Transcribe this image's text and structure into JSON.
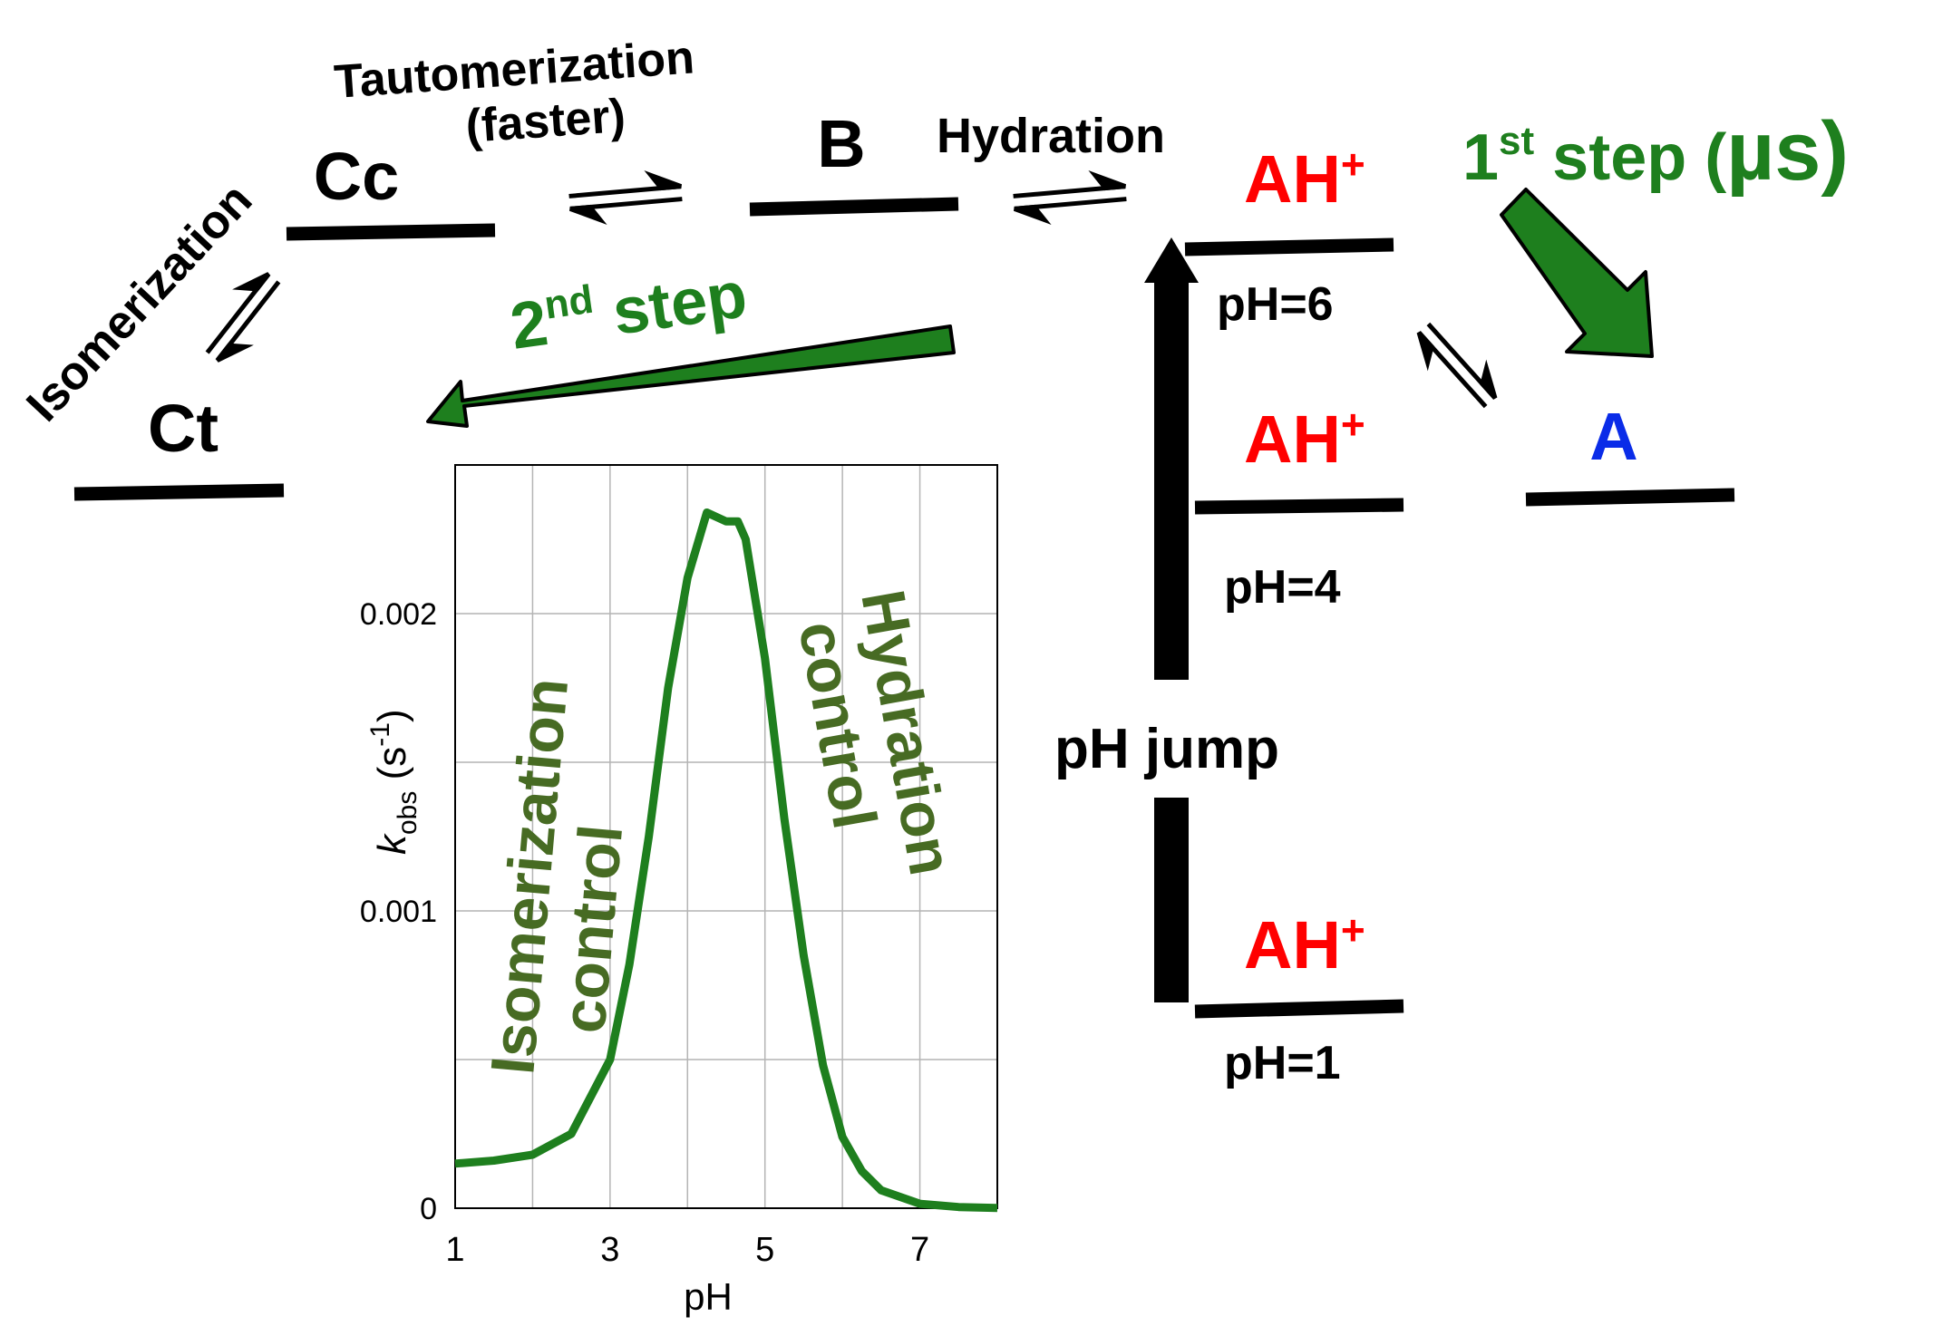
{
  "colors": {
    "green": "#1e7f1e",
    "olive": "#476b23",
    "red": "#ff0000",
    "blue": "#0a2ce8",
    "black": "#000000",
    "grid": "#b4b4b4"
  },
  "states": {
    "ct": "Ct",
    "cc": "Cc",
    "b": "B",
    "a": "A",
    "ah_plus": "AH",
    "ah_plus_sup": "+"
  },
  "processes": {
    "isomerization": "Isomerization",
    "tautomerization_line1": "Tautomerization",
    "tautomerization_line2": "(faster)",
    "hydration": "Hydration"
  },
  "steps": {
    "first_num": "1",
    "first_sup": "st",
    "first_text": " step (",
    "first_unit": "µs",
    "first_close": ")",
    "second_num": "2",
    "second_sup": "nd",
    "second_text": " step"
  },
  "ph_levels": {
    "ph6": "pH=6",
    "ph4": "pH=4",
    "ph1": "pH=1",
    "jump": "pH jump"
  },
  "chart_data": {
    "type": "line",
    "xlabel": "pH",
    "ylabel_main": "k",
    "ylabel_sub": "obs",
    "ylabel_unit_open": " (s",
    "ylabel_unit_sup": "-1",
    "ylabel_unit_close": ")",
    "xlim": [
      1,
      8
    ],
    "ylim": [
      0,
      0.0025
    ],
    "x_ticks": [
      1,
      3,
      5,
      7
    ],
    "y_ticks": [
      0,
      0.001,
      0.002
    ],
    "y_tick_labels": [
      "0",
      "0.001",
      "0.002"
    ],
    "x_grid": [
      1,
      2,
      3,
      4,
      5,
      6,
      7,
      8
    ],
    "y_grid": [
      0,
      0.0005,
      0.001,
      0.0015,
      0.002,
      0.0025
    ],
    "grid": true,
    "series": [
      {
        "color": "#1e7f1e",
        "x": [
          1,
          1.5,
          2,
          2.5,
          3,
          3.25,
          3.5,
          3.75,
          4,
          4.25,
          4.5,
          4.65,
          4.75,
          5,
          5.25,
          5.5,
          5.75,
          6,
          6.25,
          6.5,
          7,
          7.5,
          8
        ],
        "y": [
          0.00015,
          0.00016,
          0.00018,
          0.00025,
          0.0005,
          0.00082,
          0.00125,
          0.00175,
          0.00212,
          0.00234,
          0.00231,
          0.00231,
          0.00225,
          0.00185,
          0.00131,
          0.00085,
          0.00048,
          0.00024,
          0.000125,
          6e-05,
          1.5e-05,
          4e-06,
          1e-06
        ]
      }
    ],
    "annotations": {
      "left": [
        "Isomerization",
        "control"
      ],
      "right": [
        "Hydration",
        "control"
      ]
    }
  }
}
